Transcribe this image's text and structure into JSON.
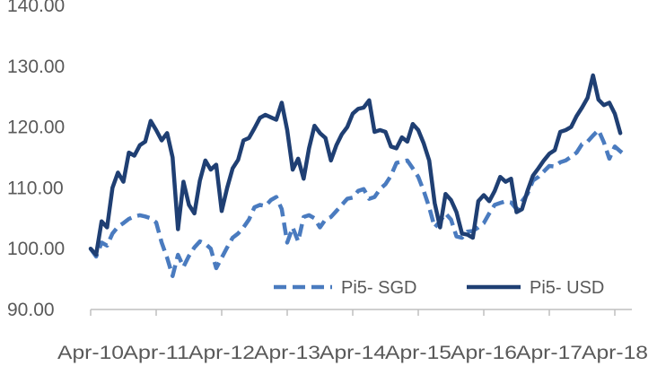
{
  "chart_data": {
    "type": "line",
    "title": "",
    "xlabel": "",
    "ylabel": "",
    "ylim": [
      90,
      140
    ],
    "y_ticks": [
      "140.00",
      "130.00",
      "120.00",
      "110.00",
      "100.00",
      "90.00"
    ],
    "y_tick_values": [
      140,
      130,
      120,
      110,
      100,
      90
    ],
    "x_ticks": [
      "Apr-10",
      "Apr-11",
      "Apr-12",
      "Apr-13",
      "Apr-14",
      "Apr-15",
      "Apr-16",
      "Apr-17",
      "Apr-18"
    ],
    "x_tick_dates": [
      "2010-04",
      "2011-04",
      "2012-04",
      "2013-04",
      "2014-04",
      "2015-04",
      "2016-04",
      "2017-04",
      "2018-04"
    ],
    "grid": false,
    "legend_position": "bottom-right",
    "series": [
      {
        "name": "Pi5- SGD",
        "color": "#4a7bbf",
        "dash": "dashed",
        "points": [
          [
            "2010-04",
            100.0
          ],
          [
            "2010-05",
            98.7
          ],
          [
            "2010-06",
            101.0
          ],
          [
            "2010-07",
            100.5
          ],
          [
            "2010-08",
            102.5
          ],
          [
            "2010-09",
            103.6
          ],
          [
            "2010-10",
            104.2
          ],
          [
            "2010-11",
            104.9
          ],
          [
            "2010-12",
            105.3
          ],
          [
            "2011-01",
            105.5
          ],
          [
            "2011-02",
            105.3
          ],
          [
            "2011-03",
            105.0
          ],
          [
            "2011-04",
            104.3
          ],
          [
            "2011-05",
            101.0
          ],
          [
            "2011-06",
            98.5
          ],
          [
            "2011-07",
            95.5
          ],
          [
            "2011-08",
            99.0
          ],
          [
            "2011-09",
            97.0
          ],
          [
            "2011-10",
            98.8
          ],
          [
            "2011-11",
            100.2
          ],
          [
            "2011-12",
            101.2
          ],
          [
            "2012-01",
            100.8
          ],
          [
            "2012-02",
            100.0
          ],
          [
            "2012-03",
            96.8
          ],
          [
            "2012-04",
            98.5
          ],
          [
            "2012-05",
            100.2
          ],
          [
            "2012-06",
            101.8
          ],
          [
            "2012-07",
            102.5
          ],
          [
            "2012-08",
            103.5
          ],
          [
            "2012-09",
            104.8
          ],
          [
            "2012-10",
            106.8
          ],
          [
            "2012-11",
            107.2
          ],
          [
            "2012-12",
            107.0
          ],
          [
            "2013-01",
            108.0
          ],
          [
            "2013-02",
            108.5
          ],
          [
            "2013-03",
            106.5
          ],
          [
            "2013-04",
            101.0
          ],
          [
            "2013-05",
            103.5
          ],
          [
            "2013-06",
            101.2
          ],
          [
            "2013-07",
            105.2
          ],
          [
            "2013-08",
            105.5
          ],
          [
            "2013-09",
            105.0
          ],
          [
            "2013-10",
            103.5
          ],
          [
            "2013-11",
            104.8
          ],
          [
            "2013-12",
            105.2
          ],
          [
            "2014-01",
            106.2
          ],
          [
            "2014-02",
            107.2
          ],
          [
            "2014-03",
            108.2
          ],
          [
            "2014-04",
            108.4
          ],
          [
            "2014-05",
            109.5
          ],
          [
            "2014-06",
            109.8
          ],
          [
            "2014-07",
            108.2
          ],
          [
            "2014-08",
            108.5
          ],
          [
            "2014-09",
            109.8
          ],
          [
            "2014-10",
            110.6
          ],
          [
            "2014-11",
            112.0
          ],
          [
            "2014-12",
            114.1
          ],
          [
            "2015-01",
            114.3
          ],
          [
            "2015-02",
            114.5
          ],
          [
            "2015-03",
            113.2
          ],
          [
            "2015-04",
            111.8
          ],
          [
            "2015-05",
            109.5
          ],
          [
            "2015-06",
            106.8
          ],
          [
            "2015-07",
            103.5
          ],
          [
            "2015-08",
            104.5
          ],
          [
            "2015-09",
            105.8
          ],
          [
            "2015-10",
            104.8
          ],
          [
            "2015-11",
            102.0
          ],
          [
            "2015-12",
            101.8
          ],
          [
            "2016-01",
            102.8
          ],
          [
            "2016-02",
            102.9
          ],
          [
            "2016-03",
            103.5
          ],
          [
            "2016-04",
            104.2
          ],
          [
            "2016-05",
            105.8
          ],
          [
            "2016-06",
            107.2
          ],
          [
            "2016-07",
            107.5
          ],
          [
            "2016-08",
            107.8
          ],
          [
            "2016-09",
            107.6
          ],
          [
            "2016-10",
            106.5
          ],
          [
            "2016-11",
            107.8
          ],
          [
            "2016-12",
            109.0
          ],
          [
            "2017-01",
            111.2
          ],
          [
            "2017-02",
            111.8
          ],
          [
            "2017-03",
            112.7
          ],
          [
            "2017-04",
            113.6
          ],
          [
            "2017-05",
            113.5
          ],
          [
            "2017-06",
            114.2
          ],
          [
            "2017-07",
            114.5
          ],
          [
            "2017-08",
            115.1
          ],
          [
            "2017-09",
            115.8
          ],
          [
            "2017-10",
            117.2
          ],
          [
            "2017-11",
            117.6
          ],
          [
            "2017-12",
            118.6
          ],
          [
            "2018-01",
            119.5
          ],
          [
            "2018-02",
            117.5
          ],
          [
            "2018-03",
            114.8
          ],
          [
            "2018-04",
            116.8
          ],
          [
            "2018-05",
            116.0
          ],
          [
            "2018-06",
            115.3
          ]
        ]
      },
      {
        "name": "Pi5- USD",
        "color": "#1f3f73",
        "dash": "solid",
        "points": [
          [
            "2010-04",
            100.0
          ],
          [
            "2010-05",
            99.0
          ],
          [
            "2010-06",
            104.5
          ],
          [
            "2010-07",
            103.5
          ],
          [
            "2010-08",
            110.0
          ],
          [
            "2010-09",
            112.5
          ],
          [
            "2010-10",
            111.0
          ],
          [
            "2010-11",
            115.8
          ],
          [
            "2010-12",
            115.3
          ],
          [
            "2011-01",
            117.0
          ],
          [
            "2011-02",
            117.6
          ],
          [
            "2011-03",
            121.0
          ],
          [
            "2011-04",
            119.5
          ],
          [
            "2011-05",
            117.8
          ],
          [
            "2011-06",
            119.0
          ],
          [
            "2011-07",
            115.0
          ],
          [
            "2011-08",
            103.2
          ],
          [
            "2011-09",
            111.0
          ],
          [
            "2011-10",
            107.2
          ],
          [
            "2011-11",
            105.8
          ],
          [
            "2011-12",
            111.2
          ],
          [
            "2012-01",
            114.5
          ],
          [
            "2012-02",
            113.0
          ],
          [
            "2012-03",
            113.8
          ],
          [
            "2012-04",
            106.2
          ],
          [
            "2012-05",
            110.0
          ],
          [
            "2012-06",
            113.2
          ],
          [
            "2012-07",
            114.6
          ],
          [
            "2012-08",
            117.8
          ],
          [
            "2012-09",
            118.2
          ],
          [
            "2012-10",
            119.8
          ],
          [
            "2012-11",
            121.5
          ],
          [
            "2012-12",
            122.0
          ],
          [
            "2013-01",
            121.6
          ],
          [
            "2013-02",
            121.2
          ],
          [
            "2013-03",
            124.0
          ],
          [
            "2013-04",
            119.5
          ],
          [
            "2013-05",
            113.0
          ],
          [
            "2013-06",
            114.8
          ],
          [
            "2013-07",
            111.5
          ],
          [
            "2013-08",
            116.5
          ],
          [
            "2013-09",
            120.2
          ],
          [
            "2013-10",
            119.0
          ],
          [
            "2013-11",
            118.2
          ],
          [
            "2013-12",
            114.5
          ],
          [
            "2014-01",
            117.0
          ],
          [
            "2014-02",
            118.8
          ],
          [
            "2014-03",
            120.0
          ],
          [
            "2014-04",
            122.2
          ],
          [
            "2014-05",
            123.0
          ],
          [
            "2014-06",
            123.2
          ],
          [
            "2014-07",
            124.4
          ],
          [
            "2014-08",
            119.2
          ],
          [
            "2014-09",
            119.5
          ],
          [
            "2014-10",
            119.2
          ],
          [
            "2014-11",
            116.8
          ],
          [
            "2014-12",
            116.5
          ],
          [
            "2015-01",
            118.3
          ],
          [
            "2015-02",
            117.6
          ],
          [
            "2015-03",
            120.5
          ],
          [
            "2015-04",
            119.5
          ],
          [
            "2015-05",
            117.3
          ],
          [
            "2015-06",
            114.5
          ],
          [
            "2015-07",
            107.5
          ],
          [
            "2015-08",
            103.5
          ],
          [
            "2015-09",
            109.0
          ],
          [
            "2015-10",
            108.0
          ],
          [
            "2015-11",
            106.0
          ],
          [
            "2015-12",
            102.5
          ],
          [
            "2016-01",
            102.3
          ],
          [
            "2016-02",
            101.8
          ],
          [
            "2016-03",
            107.8
          ],
          [
            "2016-04",
            108.8
          ],
          [
            "2016-05",
            107.8
          ],
          [
            "2016-06",
            109.5
          ],
          [
            "2016-07",
            111.8
          ],
          [
            "2016-08",
            111.0
          ],
          [
            "2016-09",
            111.5
          ],
          [
            "2016-10",
            106.0
          ],
          [
            "2016-11",
            106.5
          ],
          [
            "2016-12",
            109.5
          ],
          [
            "2017-01",
            112.0
          ],
          [
            "2017-02",
            113.2
          ],
          [
            "2017-03",
            114.5
          ],
          [
            "2017-04",
            115.6
          ],
          [
            "2017-05",
            116.2
          ],
          [
            "2017-06",
            119.2
          ],
          [
            "2017-07",
            119.5
          ],
          [
            "2017-08",
            120.0
          ],
          [
            "2017-09",
            121.8
          ],
          [
            "2017-10",
            123.2
          ],
          [
            "2017-11",
            124.8
          ],
          [
            "2017-12",
            128.5
          ],
          [
            "2018-01",
            124.5
          ],
          [
            "2018-02",
            123.6
          ],
          [
            "2018-03",
            124.0
          ],
          [
            "2018-04",
            122.2
          ],
          [
            "2018-05",
            119.0
          ]
        ]
      }
    ]
  }
}
